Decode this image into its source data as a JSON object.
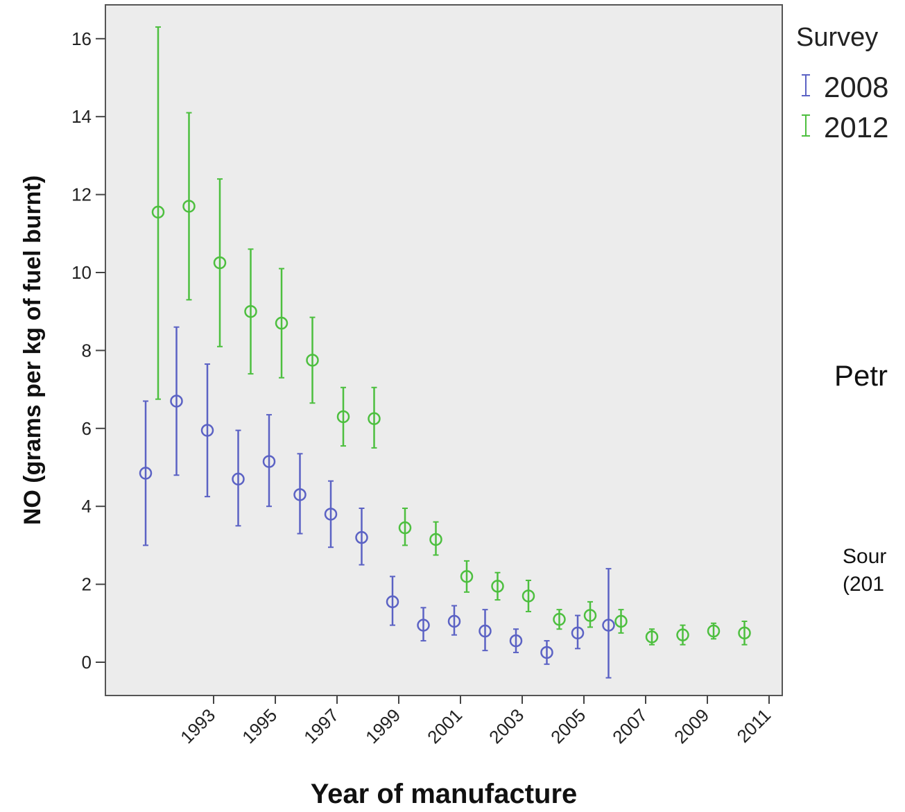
{
  "chart_data": {
    "type": "scatter",
    "xlabel": "Year of manufacture",
    "ylabel": "NO (grams per kg of fuel burnt)",
    "ylim": [
      -0.85,
      16.9
    ],
    "yticks": [
      0,
      2,
      4,
      6,
      8,
      10,
      12,
      14,
      16
    ],
    "xticks": [
      "1993",
      "1995",
      "1997",
      "1999",
      "2001",
      "2003",
      "2005",
      "2007",
      "2009",
      "2011"
    ],
    "grid": false,
    "legend": {
      "title": "Survey",
      "position": "top-right"
    },
    "series": [
      {
        "name": "2008",
        "color": "#5b62c4",
        "points": [
          {
            "x": 1993,
            "y": 4.85,
            "low": 3.0,
            "high": 6.7
          },
          {
            "x": 1994,
            "y": 6.7,
            "low": 4.8,
            "high": 8.6
          },
          {
            "x": 1995,
            "y": 5.95,
            "low": 4.25,
            "high": 7.65
          },
          {
            "x": 1996,
            "y": 4.7,
            "low": 3.5,
            "high": 5.95
          },
          {
            "x": 1997,
            "y": 5.15,
            "low": 4.0,
            "high": 6.35
          },
          {
            "x": 1998,
            "y": 4.3,
            "low": 3.3,
            "high": 5.35
          },
          {
            "x": 1999,
            "y": 3.8,
            "low": 2.95,
            "high": 4.65
          },
          {
            "x": 2000,
            "y": 3.2,
            "low": 2.5,
            "high": 3.95
          },
          {
            "x": 2001,
            "y": 1.55,
            "low": 0.95,
            "high": 2.2
          },
          {
            "x": 2002,
            "y": 0.95,
            "low": 0.55,
            "high": 1.4
          },
          {
            "x": 2003,
            "y": 1.05,
            "low": 0.7,
            "high": 1.45
          },
          {
            "x": 2004,
            "y": 0.8,
            "low": 0.3,
            "high": 1.35
          },
          {
            "x": 2005,
            "y": 0.55,
            "low": 0.25,
            "high": 0.85
          },
          {
            "x": 2006,
            "y": 0.25,
            "low": -0.05,
            "high": 0.55
          },
          {
            "x": 2007,
            "y": 0.75,
            "low": 0.35,
            "high": 1.2
          },
          {
            "x": 2008,
            "y": 0.95,
            "low": -0.4,
            "high": 2.4
          }
        ]
      },
      {
        "name": "2012",
        "color": "#4dbf3f",
        "points": [
          {
            "x": 1993,
            "y": 11.55,
            "low": 6.75,
            "high": 16.3
          },
          {
            "x": 1994,
            "y": 11.7,
            "low": 9.3,
            "high": 14.1
          },
          {
            "x": 1995,
            "y": 10.25,
            "low": 8.1,
            "high": 12.4
          },
          {
            "x": 1996,
            "y": 9.0,
            "low": 7.4,
            "high": 10.6
          },
          {
            "x": 1997,
            "y": 8.7,
            "low": 7.3,
            "high": 10.1
          },
          {
            "x": 1998,
            "y": 7.75,
            "low": 6.65,
            "high": 8.85
          },
          {
            "x": 1999,
            "y": 6.3,
            "low": 5.55,
            "high": 7.05
          },
          {
            "x": 2000,
            "y": 6.25,
            "low": 5.5,
            "high": 7.05
          },
          {
            "x": 2001,
            "y": 3.45,
            "low": 3.0,
            "high": 3.95
          },
          {
            "x": 2002,
            "y": 3.15,
            "low": 2.75,
            "high": 3.6
          },
          {
            "x": 2003,
            "y": 2.2,
            "low": 1.8,
            "high": 2.6
          },
          {
            "x": 2004,
            "y": 1.95,
            "low": 1.6,
            "high": 2.3
          },
          {
            "x": 2005,
            "y": 1.7,
            "low": 1.3,
            "high": 2.1
          },
          {
            "x": 2006,
            "y": 1.1,
            "low": 0.85,
            "high": 1.35
          },
          {
            "x": 2007,
            "y": 1.2,
            "low": 0.9,
            "high": 1.55
          },
          {
            "x": 2008,
            "y": 1.05,
            "low": 0.75,
            "high": 1.35
          },
          {
            "x": 2009,
            "y": 0.65,
            "low": 0.45,
            "high": 0.85
          },
          {
            "x": 2010,
            "y": 0.7,
            "low": 0.45,
            "high": 0.95
          },
          {
            "x": 2011,
            "y": 0.8,
            "low": 0.6,
            "high": 1.0
          },
          {
            "x": 2012,
            "y": 0.75,
            "low": 0.45,
            "high": 1.05
          }
        ]
      }
    ]
  },
  "side_text": {
    "label": "Petr",
    "source_line1": "Sour",
    "source_line2": "(201"
  }
}
